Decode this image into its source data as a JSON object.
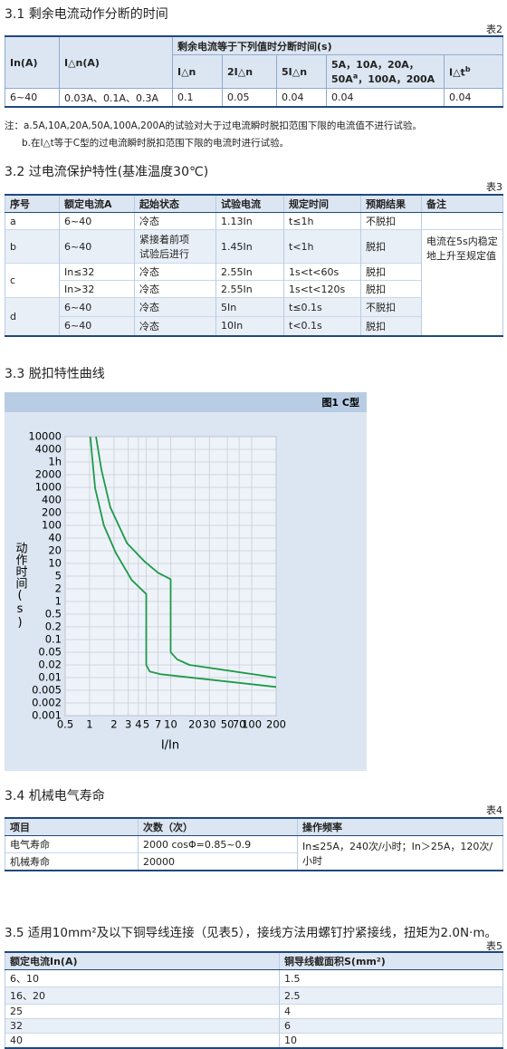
{
  "s31": {
    "heading": "3.1 剩余电流动作分断的时间",
    "caption": "表2"
  },
  "table2": {
    "header": {
      "in": "In(A)",
      "idn": "I△n(A)",
      "group": "剩余电流等于下列值时分断时间(s)",
      "sub": [
        [
          "I△n"
        ],
        [
          "2I△n"
        ],
        [
          "5I△n"
        ],
        [
          "5A，10A，20A，50A",
          "a",
          "，100A，200A"
        ],
        [
          "I△t",
          "b"
        ]
      ]
    },
    "rows": [
      [
        "6~40",
        "0.03A、0.1A、0.3A",
        "0.1",
        "0.05",
        "0.04",
        "0.04",
        "0.04"
      ]
    ],
    "notes": [
      "注：a.5A,10A,20A,50A,100A,200A的试验对大于过电流瞬时脱扣范围下限的电流值不进行试验。",
      "b.在I△t等于C型的过电流瞬时脱扣范围下限的电流时进行试验。"
    ]
  },
  "s32": {
    "heading": "3.2 过电流保护特性(基准温度30℃)",
    "caption": "表3"
  },
  "table3": {
    "header": [
      "序号",
      "额定电流A",
      "起始状态",
      "试验电流",
      "规定时间",
      "预期结果",
      "备注"
    ],
    "rows": [
      {
        "no": "a",
        "cells": [
          [
            "6~40",
            "冷态",
            "1.13In",
            "t≤1h",
            "不脱扣"
          ]
        ]
      },
      {
        "no": "b",
        "cells": [
          [
            "6~40",
            [
              "紧接着前项",
              "试验后进行"
            ],
            "1.45In",
            "t<1h",
            "脱扣"
          ]
        ]
      },
      {
        "no": "c",
        "cells": [
          [
            "In≤32",
            "冷态",
            "2.55In",
            "1s<t<60s",
            "脱扣"
          ],
          [
            "In>32",
            "冷态",
            "2.55In",
            "1s<t<120s",
            "脱扣"
          ]
        ]
      },
      {
        "no": "d",
        "cells": [
          [
            "6~40",
            "冷态",
            "5In",
            "t≤0.1s",
            "不脱扣"
          ],
          [
            "6~40",
            "冷态",
            "10In",
            "t<0.1s",
            "脱扣"
          ]
        ]
      }
    ],
    "remark": [
      "电流在5s内稳定",
      "地上升至规定值"
    ]
  },
  "s33": {
    "heading": "3.3 脱扣特性曲线"
  },
  "chart_data": {
    "type": "line",
    "title": "图1   C型",
    "xlabel": "I/In",
    "ylabel": "动作时间(s)",
    "xscale": "log",
    "yscale": "log",
    "grid": true,
    "xlim": [
      0.5,
      200
    ],
    "ylim": [
      0.001,
      10000
    ],
    "xticks": [
      0.5,
      1,
      2,
      3,
      4,
      5,
      7,
      10,
      20,
      30,
      50,
      70,
      100,
      200
    ],
    "yticks": [
      10000,
      4000,
      {
        "value": 3600,
        "label": "1h"
      },
      2000,
      1000,
      400,
      200,
      100,
      40,
      20,
      10,
      5,
      2,
      1,
      0.5,
      0.2,
      0.1,
      0.05,
      0.02,
      0.01,
      0.005,
      0.002,
      0.001
    ],
    "series": [
      {
        "color": "#1f9a48",
        "x": [
          1.02,
          1.17,
          1.5,
          2.1,
          3.3,
          5,
          5,
          5.5,
          7.6,
          200
        ],
        "values": [
          10000,
          950,
          100,
          18,
          3.8,
          1.5,
          0.02,
          0.014,
          0.012,
          0.006
        ]
      },
      {
        "color": "#1f9a48",
        "x": [
          1.2,
          1.4,
          1.8,
          2.9,
          4.8,
          7,
          10,
          10,
          12,
          17,
          200
        ],
        "values": [
          10000,
          2500,
          270,
          30,
          11,
          6,
          4,
          0.05,
          0.03,
          0.02,
          0.01
        ]
      }
    ]
  },
  "s34": {
    "heading": "3.4 机械电气寿命",
    "caption": "表4"
  },
  "table4": {
    "header": [
      "项目",
      "次数（次）",
      "操作频率"
    ],
    "rows": [
      [
        "电气寿命",
        "2000  cosΦ=0.85~0.9"
      ],
      [
        "机械寿命",
        "20000"
      ]
    ],
    "frequency": "In≤25A，240次/小时；In＞25A，120次/小时"
  },
  "s35": {
    "heading": "3.5 适用10mm²及以下铜导线连接（见表5），接线方法用螺钉拧紧接线，扭矩为2.0N·m。",
    "caption": "表5"
  },
  "table5": {
    "header": [
      "额定电流In(A)",
      "铜导线截面积S(mm²)"
    ],
    "rows": [
      [
        "6、10",
        "1.5"
      ],
      [
        "16、20",
        "2.5"
      ],
      [
        "25",
        "4"
      ],
      [
        "32",
        "6"
      ],
      [
        "40",
        "10"
      ]
    ]
  }
}
